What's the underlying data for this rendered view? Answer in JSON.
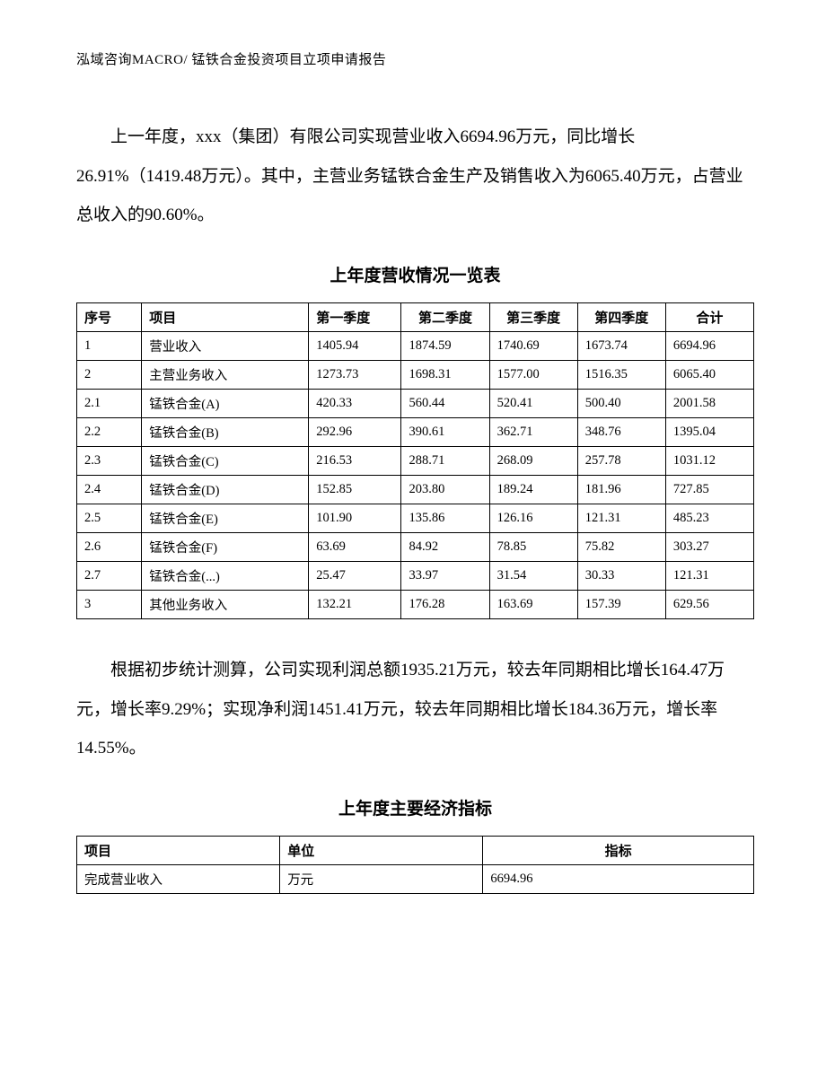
{
  "header": "泓域咨询MACRO/     锰铁合金投资项目立项申请报告",
  "paragraph1": "上一年度，xxx（集团）有限公司实现营业收入6694.96万元，同比增长26.91%（1419.48万元）。其中，主营业务锰铁合金生产及销售收入为6065.40万元，占营业总收入的90.60%。",
  "table1_title": "上年度营收情况一览表",
  "revenue_table": {
    "columns": [
      "序号",
      "项目",
      "第一季度",
      "第二季度",
      "第三季度",
      "第四季度",
      "合计"
    ],
    "rows": [
      [
        "1",
        "营业收入",
        "1405.94",
        "1874.59",
        "1740.69",
        "1673.74",
        "6694.96"
      ],
      [
        "2",
        "主营业务收入",
        "1273.73",
        "1698.31",
        "1577.00",
        "1516.35",
        "6065.40"
      ],
      [
        "2.1",
        "锰铁合金(A)",
        "420.33",
        "560.44",
        "520.41",
        "500.40",
        "2001.58"
      ],
      [
        "2.2",
        "锰铁合金(B)",
        "292.96",
        "390.61",
        "362.71",
        "348.76",
        "1395.04"
      ],
      [
        "2.3",
        "锰铁合金(C)",
        "216.53",
        "288.71",
        "268.09",
        "257.78",
        "1031.12"
      ],
      [
        "2.4",
        "锰铁合金(D)",
        "152.85",
        "203.80",
        "189.24",
        "181.96",
        "727.85"
      ],
      [
        "2.5",
        "锰铁合金(E)",
        "101.90",
        "135.86",
        "126.16",
        "121.31",
        "485.23"
      ],
      [
        "2.6",
        "锰铁合金(F)",
        "63.69",
        "84.92",
        "78.85",
        "75.82",
        "303.27"
      ],
      [
        "2.7",
        "锰铁合金(...)",
        "25.47",
        "33.97",
        "31.54",
        "30.33",
        "121.31"
      ],
      [
        "3",
        "其他业务收入",
        "132.21",
        "176.28",
        "163.69",
        "157.39",
        "629.56"
      ]
    ]
  },
  "paragraph2": "根据初步统计测算，公司实现利润总额1935.21万元，较去年同期相比增长164.47万元，增长率9.29%；实现净利润1451.41万元，较去年同期相比增长184.36万元，增长率14.55%。",
  "table2_title": "上年度主要经济指标",
  "indicator_table": {
    "columns": [
      "项目",
      "单位",
      "指标"
    ],
    "rows": [
      [
        "完成营业收入",
        "万元",
        "6694.96"
      ]
    ]
  }
}
